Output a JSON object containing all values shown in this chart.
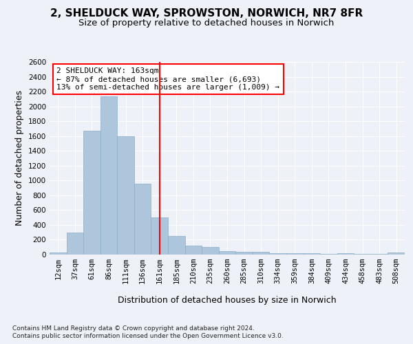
{
  "title_line1": "2, SHELDUCK WAY, SPROWSTON, NORWICH, NR7 8FR",
  "title_line2": "Size of property relative to detached houses in Norwich",
  "xlabel": "Distribution of detached houses by size in Norwich",
  "ylabel": "Number of detached properties",
  "footnote1": "Contains HM Land Registry data © Crown copyright and database right 2024.",
  "footnote2": "Contains public sector information licensed under the Open Government Licence v3.0.",
  "bin_labels": [
    "12sqm",
    "37sqm",
    "61sqm",
    "86sqm",
    "111sqm",
    "136sqm",
    "161sqm",
    "185sqm",
    "210sqm",
    "235sqm",
    "260sqm",
    "285sqm",
    "310sqm",
    "334sqm",
    "359sqm",
    "384sqm",
    "409sqm",
    "434sqm",
    "458sqm",
    "483sqm",
    "508sqm"
  ],
  "bar_values": [
    25,
    300,
    1670,
    2140,
    1600,
    960,
    500,
    250,
    120,
    100,
    50,
    40,
    35,
    20,
    20,
    20,
    5,
    20,
    5,
    5,
    25
  ],
  "bar_color": "#aec6dc",
  "bar_edgecolor": "#8aaec8",
  "vline_x": 6,
  "vline_color": "red",
  "annotation_text": "2 SHELDUCK WAY: 163sqm\n← 87% of detached houses are smaller (6,693)\n13% of semi-detached houses are larger (1,009) →",
  "annotation_box_color": "white",
  "annotation_box_edgecolor": "red",
  "ylim": [
    0,
    2600
  ],
  "yticks": [
    0,
    200,
    400,
    600,
    800,
    1000,
    1200,
    1400,
    1600,
    1800,
    2000,
    2200,
    2400,
    2600
  ],
  "background_color": "#eef2f8",
  "plot_bg_color": "#eef2f8",
  "grid_color": "white",
  "title_fontsize": 11,
  "subtitle_fontsize": 9.5,
  "axis_label_fontsize": 9,
  "tick_fontsize": 7.5,
  "annotation_fontsize": 8
}
